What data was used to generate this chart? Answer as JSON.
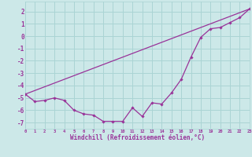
{
  "xlabel": "Windchill (Refroidissement éolien,°C)",
  "bg_color": "#cce8e8",
  "grid_color": "#aad4d4",
  "line_color": "#993399",
  "xmin": 0,
  "xmax": 23,
  "ymin": -7.5,
  "ymax": 2.8,
  "yticks": [
    -7,
    -6,
    -5,
    -4,
    -3,
    -2,
    -1,
    0,
    1,
    2
  ],
  "series1": [
    [
      0,
      -4.7
    ],
    [
      1,
      -5.3
    ],
    [
      2,
      -5.2
    ],
    [
      3,
      -5.0
    ],
    [
      4,
      -5.2
    ],
    [
      5,
      -6.0
    ],
    [
      6,
      -6.3
    ],
    [
      7,
      -6.4
    ],
    [
      8,
      -6.9
    ],
    [
      9,
      -6.9
    ],
    [
      10,
      -6.9
    ],
    [
      11,
      -5.8
    ],
    [
      12,
      -6.5
    ],
    [
      13,
      -5.4
    ],
    [
      14,
      -5.5
    ],
    [
      15,
      -4.6
    ],
    [
      16,
      -3.5
    ],
    [
      17,
      -1.7
    ],
    [
      18,
      -0.1
    ],
    [
      19,
      0.6
    ],
    [
      20,
      0.7
    ],
    [
      21,
      1.1
    ],
    [
      22,
      1.5
    ],
    [
      23,
      2.2
    ]
  ],
  "smooth_line": [
    [
      0,
      -4.7
    ],
    [
      23,
      2.2
    ]
  ]
}
